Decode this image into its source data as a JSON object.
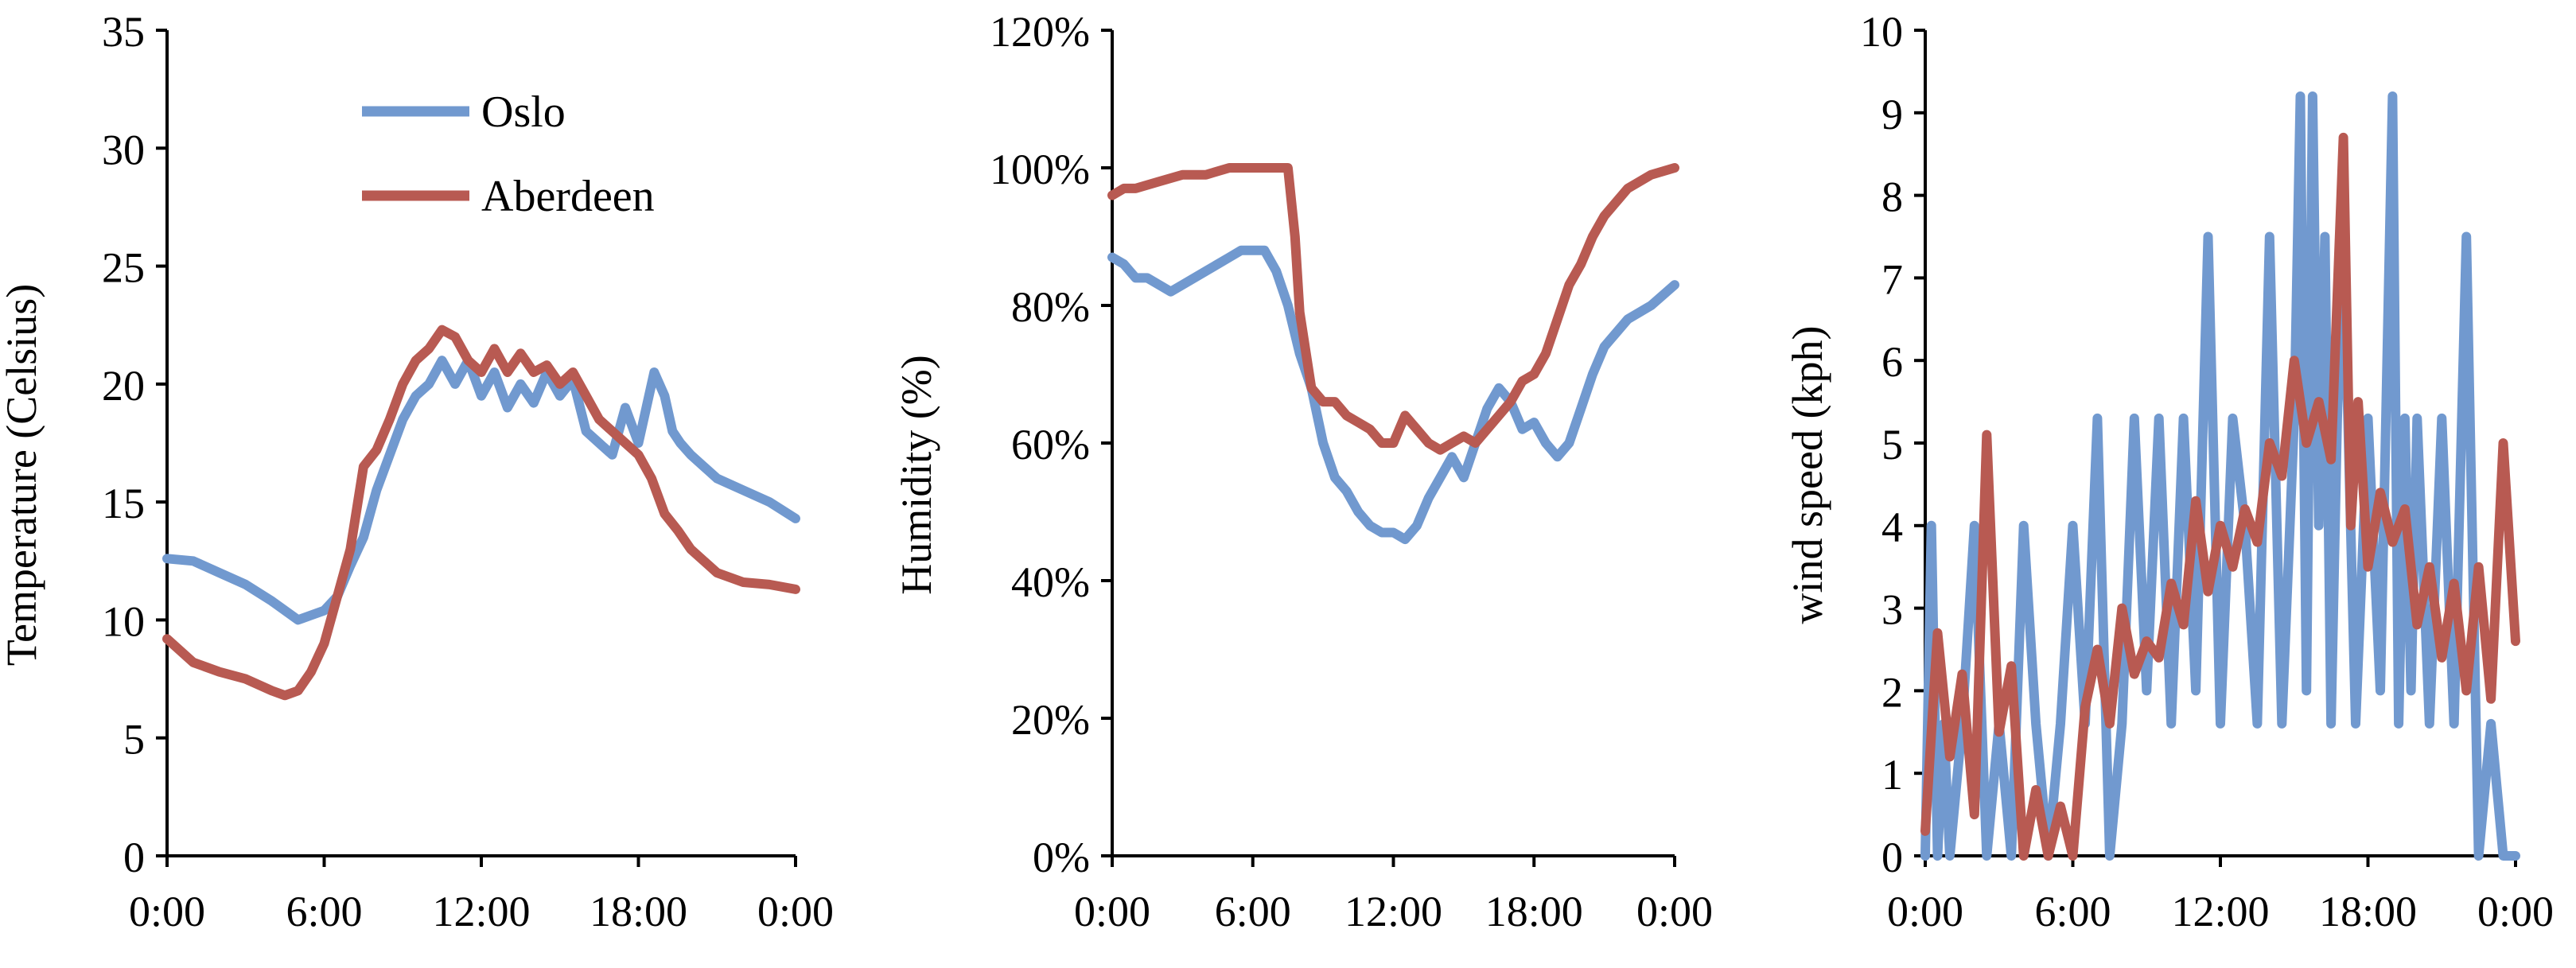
{
  "chart_data": [
    {
      "type": "line",
      "title": "",
      "xlabel": "",
      "ylabel": "Temperature (Celsius)",
      "xlim": [
        0,
        24
      ],
      "ylim": [
        0,
        35
      ],
      "x_tick_labels": [
        "0:00",
        "6:00",
        "12:00",
        "18:00",
        "0:00"
      ],
      "y_tick_labels": [
        "0",
        "5",
        "10",
        "15",
        "20",
        "25",
        "30",
        "35"
      ],
      "grid": false,
      "legend": "top-left",
      "series": [
        {
          "name": "Oslo",
          "color": "#7199cf",
          "x": [
            0,
            1,
            2,
            3,
            4,
            5,
            5.5,
            6,
            6.5,
            7,
            7.5,
            8,
            8.5,
            9,
            9.5,
            10,
            10.5,
            11,
            11.5,
            12,
            12.5,
            13,
            13.5,
            14,
            14.5,
            15,
            15.5,
            16,
            16.5,
            17,
            17.5,
            18,
            18.3,
            18.6,
            19,
            19.3,
            19.6,
            20,
            20.5,
            21,
            22,
            23,
            24
          ],
          "y": [
            12.6,
            12.5,
            12.0,
            11.5,
            10.8,
            10.0,
            10.2,
            10.4,
            11.0,
            12.3,
            13.5,
            15.5,
            17.0,
            18.5,
            19.5,
            20.0,
            21.0,
            20.0,
            21.0,
            19.5,
            20.5,
            19.0,
            20.0,
            19.2,
            20.5,
            19.5,
            20.2,
            18.0,
            17.5,
            17.0,
            19.0,
            17.5,
            19.0,
            20.5,
            19.5,
            18.0,
            17.5,
            17.0,
            16.5,
            16.0,
            15.5,
            15.0,
            14.3
          ]
        },
        {
          "name": "Aberdeen",
          "color": "#b85a52",
          "x": [
            0,
            1,
            2,
            3,
            4,
            4.5,
            5,
            5.5,
            6,
            6.5,
            7,
            7.5,
            8,
            8.5,
            9,
            9.5,
            10,
            10.5,
            11,
            11.5,
            12,
            12.5,
            13,
            13.5,
            14,
            14.5,
            15,
            15.5,
            16,
            16.5,
            17,
            17.5,
            18,
            18.5,
            19,
            19.5,
            20,
            20.5,
            21,
            22,
            23,
            24
          ],
          "y": [
            9.2,
            8.2,
            7.8,
            7.5,
            7.0,
            6.8,
            7.0,
            7.8,
            9.0,
            11.0,
            13.0,
            16.5,
            17.2,
            18.5,
            20.0,
            21.0,
            21.5,
            22.3,
            22.0,
            21.0,
            20.5,
            21.5,
            20.5,
            21.3,
            20.5,
            20.8,
            20.0,
            20.5,
            19.5,
            18.5,
            18.0,
            17.5,
            17.0,
            16.0,
            14.5,
            13.8,
            13.0,
            12.5,
            12.0,
            11.6,
            11.5,
            11.3
          ]
        }
      ]
    },
    {
      "type": "line",
      "title": "",
      "xlabel": "",
      "ylabel": "Humidity (%)",
      "xlim": [
        0,
        24
      ],
      "ylim": [
        0,
        120
      ],
      "x_tick_labels": [
        "0:00",
        "6:00",
        "12:00",
        "18:00",
        "0:00"
      ],
      "y_tick_labels": [
        "0%",
        "20%",
        "40%",
        "60%",
        "80%",
        "100%",
        "120%"
      ],
      "grid": false,
      "series": [
        {
          "name": "",
          "color": "#7199cf",
          "x": [
            0,
            0.5,
            1,
            1.5,
            2,
            2.5,
            3,
            4,
            5,
            5.5,
            6,
            6.5,
            7,
            7.5,
            8,
            8.5,
            9,
            9.5,
            10,
            10.5,
            11,
            11.5,
            12,
            12.5,
            13,
            13.5,
            14,
            14.5,
            15,
            15.5,
            16,
            16.5,
            17,
            17.5,
            18,
            18.5,
            19,
            19.5,
            20,
            20.5,
            21,
            22,
            23,
            24
          ],
          "y": [
            87,
            86,
            84,
            84,
            83,
            82,
            83,
            85,
            87,
            88,
            88,
            88,
            85,
            80,
            73,
            68,
            60,
            55,
            53,
            50,
            48,
            47,
            47,
            46,
            48,
            52,
            55,
            58,
            55,
            60,
            65,
            68,
            66,
            62,
            63,
            60,
            58,
            60,
            65,
            70,
            74,
            78,
            80,
            83
          ]
        },
        {
          "name": "",
          "color": "#b85a52",
          "x": [
            0,
            0.5,
            1,
            2,
            3,
            4,
            5,
            6,
            7,
            7.5,
            7.8,
            8,
            8.5,
            9,
            9.5,
            10,
            10.5,
            11,
            11.5,
            12,
            12.5,
            13,
            13.5,
            14,
            14.5,
            15,
            15.5,
            16,
            16.5,
            17,
            17.5,
            18,
            18.5,
            19,
            19.5,
            20,
            20.5,
            21,
            22,
            23,
            24
          ],
          "y": [
            96,
            97,
            97,
            98,
            99,
            99,
            100,
            100,
            100,
            100,
            90,
            79,
            68,
            66,
            66,
            64,
            63,
            62,
            60,
            60,
            64,
            62,
            60,
            59,
            60,
            61,
            60,
            62,
            64,
            66,
            69,
            70,
            73,
            78,
            83,
            86,
            90,
            93,
            97,
            99,
            100
          ]
        }
      ]
    },
    {
      "type": "line",
      "title": "",
      "xlabel": "",
      "ylabel": "wind speed (kph)",
      "xlim": [
        0,
        24
      ],
      "ylim": [
        0,
        10
      ],
      "x_tick_labels": [
        "0:00",
        "6:00",
        "12:00",
        "18:00",
        "0:00"
      ],
      "y_tick_labels": [
        "0",
        "1",
        "2",
        "3",
        "4",
        "5",
        "6",
        "7",
        "8",
        "9",
        "10"
      ],
      "grid": false,
      "series": [
        {
          "name": "",
          "color": "#7199cf",
          "x": [
            0,
            0.25,
            0.5,
            0.75,
            1,
            1.5,
            2,
            2.5,
            3,
            3.5,
            4,
            4.5,
            5,
            5.5,
            6,
            6.5,
            7,
            7.5,
            8,
            8.5,
            9,
            9.5,
            10,
            10.5,
            11,
            11.5,
            12,
            12.5,
            13,
            13.5,
            14,
            14.5,
            15,
            15.25,
            15.5,
            15.75,
            16,
            16.25,
            16.5,
            16.75,
            17,
            17.5,
            18,
            18.5,
            19,
            19.25,
            19.5,
            19.75,
            20,
            20.5,
            21,
            21.5,
            22,
            22.5,
            23,
            23.5,
            24
          ],
          "y": [
            0,
            4,
            0,
            1.6,
            0,
            1.6,
            4,
            0,
            1.6,
            0,
            4,
            1.6,
            0,
            1.6,
            4,
            1.6,
            5.3,
            0,
            1.6,
            5.3,
            2,
            5.3,
            1.6,
            5.3,
            2,
            7.5,
            1.6,
            5.3,
            4,
            1.6,
            7.5,
            1.6,
            5.3,
            9.2,
            2,
            9.2,
            4,
            7.5,
            1.6,
            5.3,
            7.5,
            1.6,
            5.3,
            2,
            9.2,
            1.6,
            5.3,
            2,
            5.3,
            1.6,
            5.3,
            1.6,
            7.5,
            0,
            1.6,
            0,
            0
          ]
        },
        {
          "name": "",
          "color": "#b85a52",
          "x": [
            0,
            0.5,
            1,
            1.5,
            2,
            2.5,
            3,
            3.5,
            4,
            4.5,
            5,
            5.5,
            6,
            6.5,
            7,
            7.5,
            8,
            8.5,
            9,
            9.5,
            10,
            10.5,
            11,
            11.5,
            12,
            12.5,
            13,
            13.5,
            14,
            14.5,
            15,
            15.5,
            16,
            16.5,
            17,
            17.3,
            17.6,
            18,
            18.5,
            19,
            19.5,
            20,
            20.5,
            21,
            21.5,
            22,
            22.5,
            23,
            23.5,
            24
          ],
          "y": [
            0.3,
            2.7,
            1.2,
            2.2,
            0.5,
            5.1,
            1.5,
            2.3,
            0,
            0.8,
            0,
            0.6,
            0,
            1.8,
            2.5,
            1.6,
            3.0,
            2.2,
            2.6,
            2.4,
            3.3,
            2.8,
            4.3,
            3.2,
            4.0,
            3.5,
            4.2,
            3.8,
            5.0,
            4.6,
            6.0,
            5.0,
            5.5,
            4.8,
            8.7,
            4.0,
            5.5,
            3.5,
            4.4,
            3.8,
            4.2,
            2.8,
            3.5,
            2.4,
            3.3,
            2.0,
            3.5,
            1.9,
            5.0,
            2.6
          ]
        }
      ]
    }
  ]
}
